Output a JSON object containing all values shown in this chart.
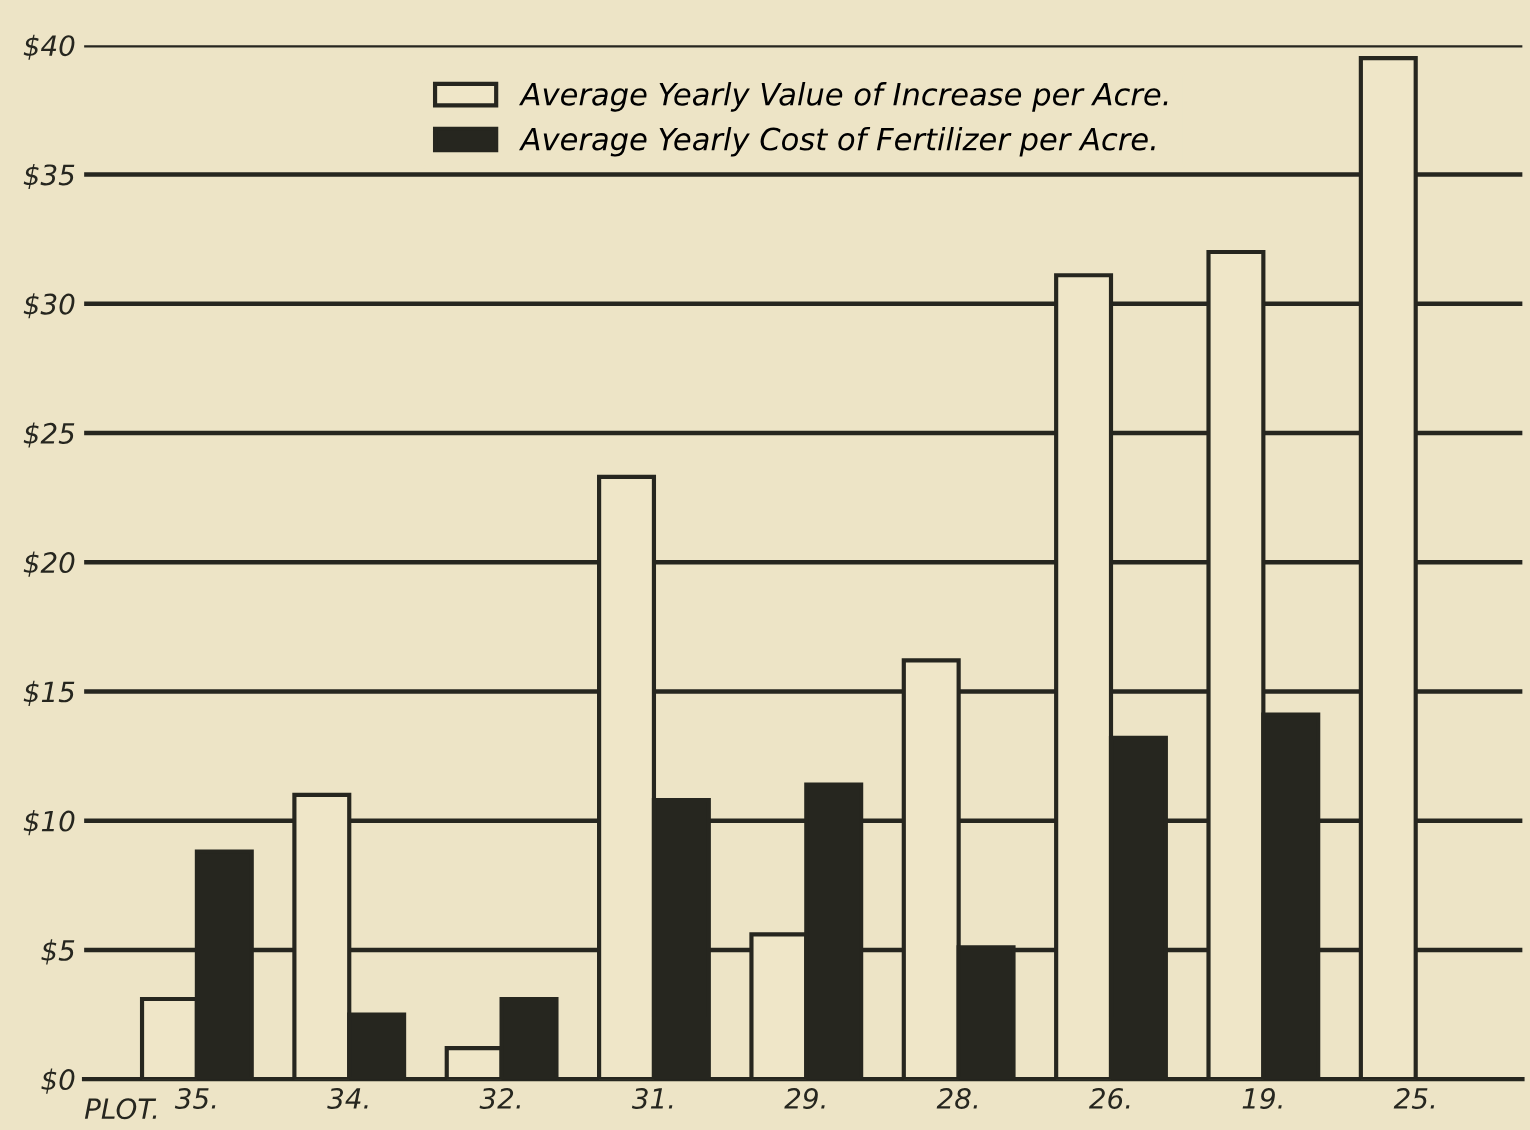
{
  "chart_data": {
    "type": "bar",
    "xlabel": "PLOT.",
    "categories": [
      "35.",
      "34.",
      "32.",
      "31.",
      "29.",
      "28.",
      "26.",
      "19.",
      "25."
    ],
    "series": [
      {
        "name": "Average Yearly Value of Increase per Acre.",
        "color": "#efe6c8",
        "values": [
          3.1,
          11.0,
          1.2,
          23.3,
          5.6,
          16.2,
          31.1,
          32.0,
          39.5
        ]
      },
      {
        "name": "Average Yearly Cost of Fertilizer per Acre.",
        "color": "#26261f",
        "values": [
          8.8,
          2.5,
          3.1,
          10.8,
          11.4,
          5.1,
          13.2,
          14.1,
          null
        ]
      }
    ],
    "ylim": [
      0,
      40
    ],
    "yticks": [
      {
        "value": 0,
        "label": "$0"
      },
      {
        "value": 5,
        "label": "$5"
      },
      {
        "value": 10,
        "label": "$10"
      },
      {
        "value": 15,
        "label": "$15"
      },
      {
        "value": 20,
        "label": "$20"
      },
      {
        "value": 25,
        "label": "$25"
      },
      {
        "value": 30,
        "label": "$30"
      },
      {
        "value": 35,
        "label": "$35"
      },
      {
        "value": 40,
        "label": "$40"
      }
    ],
    "grid": "y",
    "legend": "top"
  }
}
